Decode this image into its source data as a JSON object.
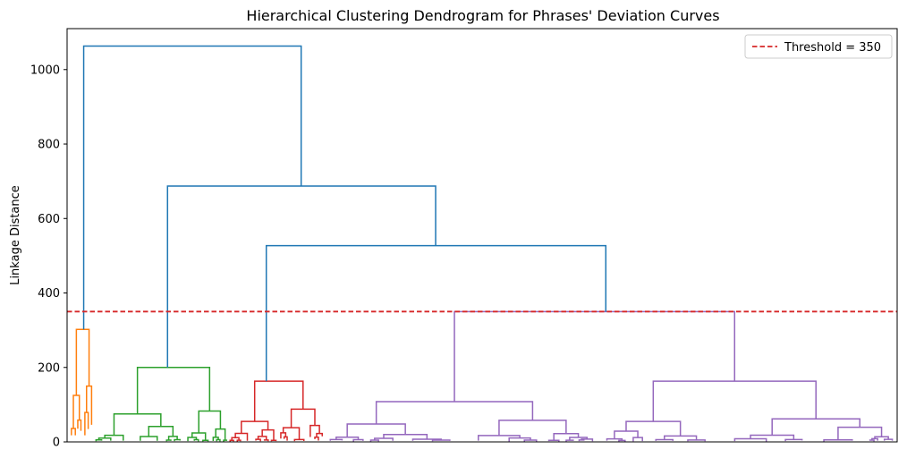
{
  "chart_data": {
    "type": "dendrogram",
    "title": "Hierarchical Clustering Dendrogram for Phrases' Deviation Curves",
    "ylabel": "Linkage Distance",
    "xlabel": "",
    "ylim": [
      0,
      1110
    ],
    "yticks": [
      "0",
      "200",
      "400",
      "600",
      "800",
      "1000"
    ],
    "ytick_values": [
      0,
      200,
      400,
      600,
      800,
      1000
    ],
    "threshold": {
      "value": 350,
      "label": "Threshold = 350",
      "color": "#d62728"
    },
    "legend_position": "top-right",
    "grid": false,
    "x_range": [
      0,
      1000
    ],
    "clusters": [
      {
        "color": "#ff7f0e",
        "leaf_range": [
          2,
          32
        ],
        "root_x": 20,
        "height": 302
      },
      {
        "color": "#2ca02c",
        "leaf_range": [
          32,
          194
        ],
        "root_x": 121,
        "height": 200
      },
      {
        "color": "#d62728",
        "leaf_range": [
          194,
          310
        ],
        "root_x": 240,
        "height": 163
      },
      {
        "color": "#9467bd",
        "leaf_range": [
          310,
          998
        ],
        "root_x": 463,
        "height": 350
      }
    ],
    "top_links": [
      {
        "color": "#1f77b4",
        "x1": 240,
        "x2": 649,
        "height": 527
      },
      {
        "color": "#1f77b4",
        "x1": 121,
        "x2": 444,
        "height": 687
      },
      {
        "color": "#1f77b4",
        "x1": 20,
        "x2": 282,
        "height": 1063
      }
    ],
    "above_threshold_color": "#1f77b4"
  }
}
